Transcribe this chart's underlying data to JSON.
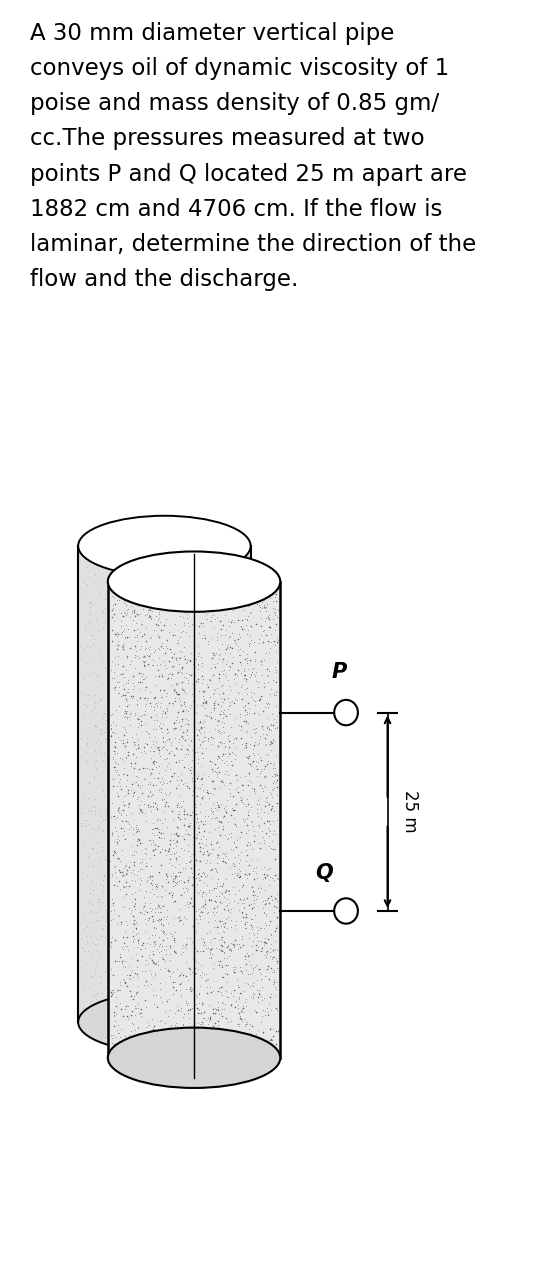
{
  "title_text": "A 30 mm diameter vertical pipe\nconveys oil of dynamic viscosity of 1\npoise and mass density of 0.85 gm/\ncc.The pressures measured at two\npoints P and Q located 25 m apart are\n1882 cm and 4706 cm. If the flow is\nlaminar, determine the direction of the\nflow and the discharge.",
  "title_fontsize": 16.5,
  "bg_color": "#ffffff",
  "text_color": "#000000",
  "label_P": "P",
  "label_Q": "Q",
  "label_25m": "25 m"
}
